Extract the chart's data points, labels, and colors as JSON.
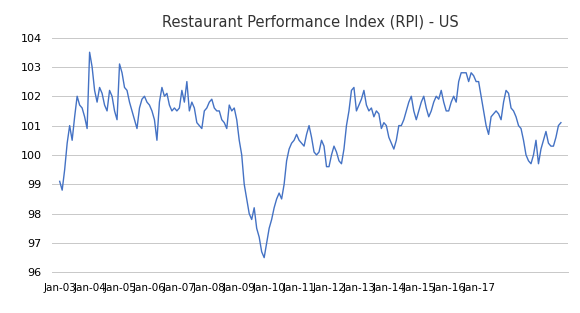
{
  "title": "Restaurant Performance Index (RPI) - US",
  "line_color": "#4472C4",
  "background_color": "#ffffff",
  "grid_color": "#c8c8c8",
  "ylim": [
    96,
    104
  ],
  "yticks": [
    96,
    97,
    98,
    99,
    100,
    101,
    102,
    103,
    104
  ],
  "xtick_labels": [
    "Jan-03",
    "Jan-04",
    "Jan-05",
    "Jan-06",
    "Jan-07",
    "Jan-08",
    "Jan-09",
    "Jan-10",
    "Jan-11",
    "Jan-12",
    "Jan-13",
    "Jan-14",
    "Jan-15",
    "Jan-16",
    "Jan-17"
  ],
  "data": [
    99.1,
    98.8,
    99.5,
    100.4,
    101.0,
    100.5,
    101.3,
    102.0,
    101.7,
    101.6,
    101.3,
    100.9,
    103.5,
    103.0,
    102.2,
    101.8,
    102.3,
    102.1,
    101.7,
    101.5,
    102.2,
    102.0,
    101.5,
    101.2,
    103.1,
    102.8,
    102.3,
    102.2,
    101.8,
    101.5,
    101.2,
    100.9,
    101.6,
    101.9,
    102.0,
    101.8,
    101.7,
    101.5,
    101.2,
    100.5,
    101.8,
    102.3,
    102.0,
    102.1,
    101.7,
    101.5,
    101.6,
    101.5,
    101.6,
    102.2,
    101.8,
    102.5,
    101.5,
    101.8,
    101.6,
    101.1,
    101.0,
    100.9,
    101.5,
    101.6,
    101.8,
    101.9,
    101.6,
    101.5,
    101.5,
    101.2,
    101.1,
    100.9,
    101.7,
    101.5,
    101.6,
    101.2,
    100.5,
    100.0,
    99.0,
    98.5,
    98.0,
    97.8,
    98.2,
    97.5,
    97.2,
    96.7,
    96.5,
    97.0,
    97.5,
    97.8,
    98.2,
    98.5,
    98.7,
    98.5,
    99.0,
    99.8,
    100.2,
    100.4,
    100.5,
    100.7,
    100.5,
    100.4,
    100.3,
    100.7,
    101.0,
    100.6,
    100.1,
    100.0,
    100.1,
    100.5,
    100.3,
    99.6,
    99.6,
    100.0,
    100.3,
    100.1,
    99.8,
    99.7,
    100.2,
    101.0,
    101.5,
    102.2,
    102.3,
    101.5,
    101.7,
    101.9,
    102.2,
    101.7,
    101.5,
    101.6,
    101.3,
    101.5,
    101.4,
    100.9,
    101.1,
    101.0,
    100.6,
    100.4,
    100.2,
    100.5,
    101.0,
    101.0,
    101.2,
    101.5,
    101.8,
    102.0,
    101.5,
    101.2,
    101.5,
    101.8,
    102.0,
    101.6,
    101.3,
    101.5,
    101.8,
    102.0,
    101.9,
    102.2,
    101.8,
    101.5,
    101.5,
    101.8,
    102.0,
    101.8,
    102.5,
    102.8,
    102.8,
    102.8,
    102.5,
    102.8,
    102.7,
    102.5,
    102.5,
    102.0,
    101.5,
    101.0,
    100.7,
    101.3,
    101.4,
    101.5,
    101.4,
    101.2,
    101.8,
    102.2,
    102.1,
    101.6,
    101.5,
    101.3,
    101.0,
    100.9,
    100.5,
    100.0,
    99.8,
    99.7,
    100.0,
    100.5,
    99.7,
    100.2,
    100.5,
    100.8,
    100.4,
    100.3,
    100.3,
    100.6,
    101.0,
    101.1
  ]
}
